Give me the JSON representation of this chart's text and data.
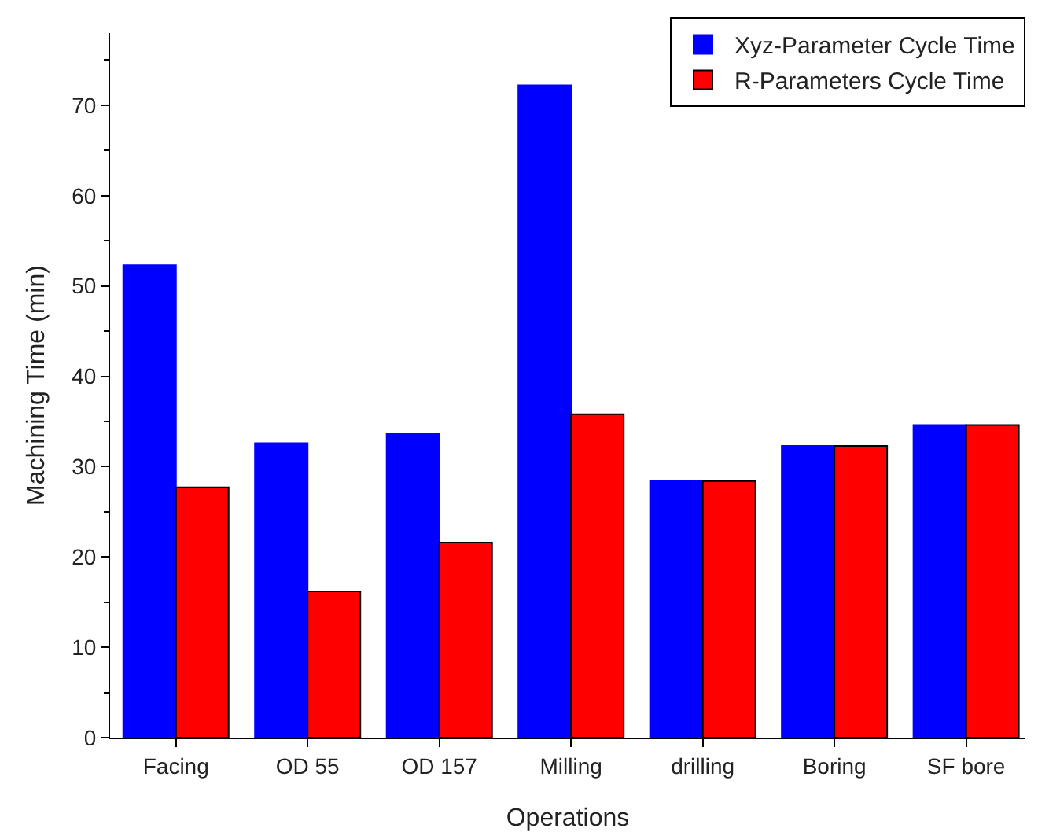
{
  "chart_data": {
    "type": "bar",
    "xlabel": "Operations",
    "ylabel": "Machining Time (min)",
    "categories": [
      "Facing",
      "OD 55",
      "OD 157",
      "Milling",
      "drilling",
      "Boring",
      "SF bore"
    ],
    "series": [
      {
        "name": "Xyz-Parameter Cycle Time",
        "color": "#0000ff",
        "values": [
          52.3,
          32.6,
          33.7,
          72.2,
          28.4,
          32.3,
          34.6
        ]
      },
      {
        "name": "R-Parameters Cycle Time",
        "color": "#ff0000",
        "values": [
          27.7,
          16.2,
          21.6,
          35.8,
          28.4,
          32.3,
          34.6
        ]
      }
    ],
    "ylim": [
      0,
      78
    ],
    "yticks": [
      0,
      10,
      20,
      30,
      40,
      50,
      60,
      70
    ],
    "grid": false,
    "legend": "top right"
  }
}
